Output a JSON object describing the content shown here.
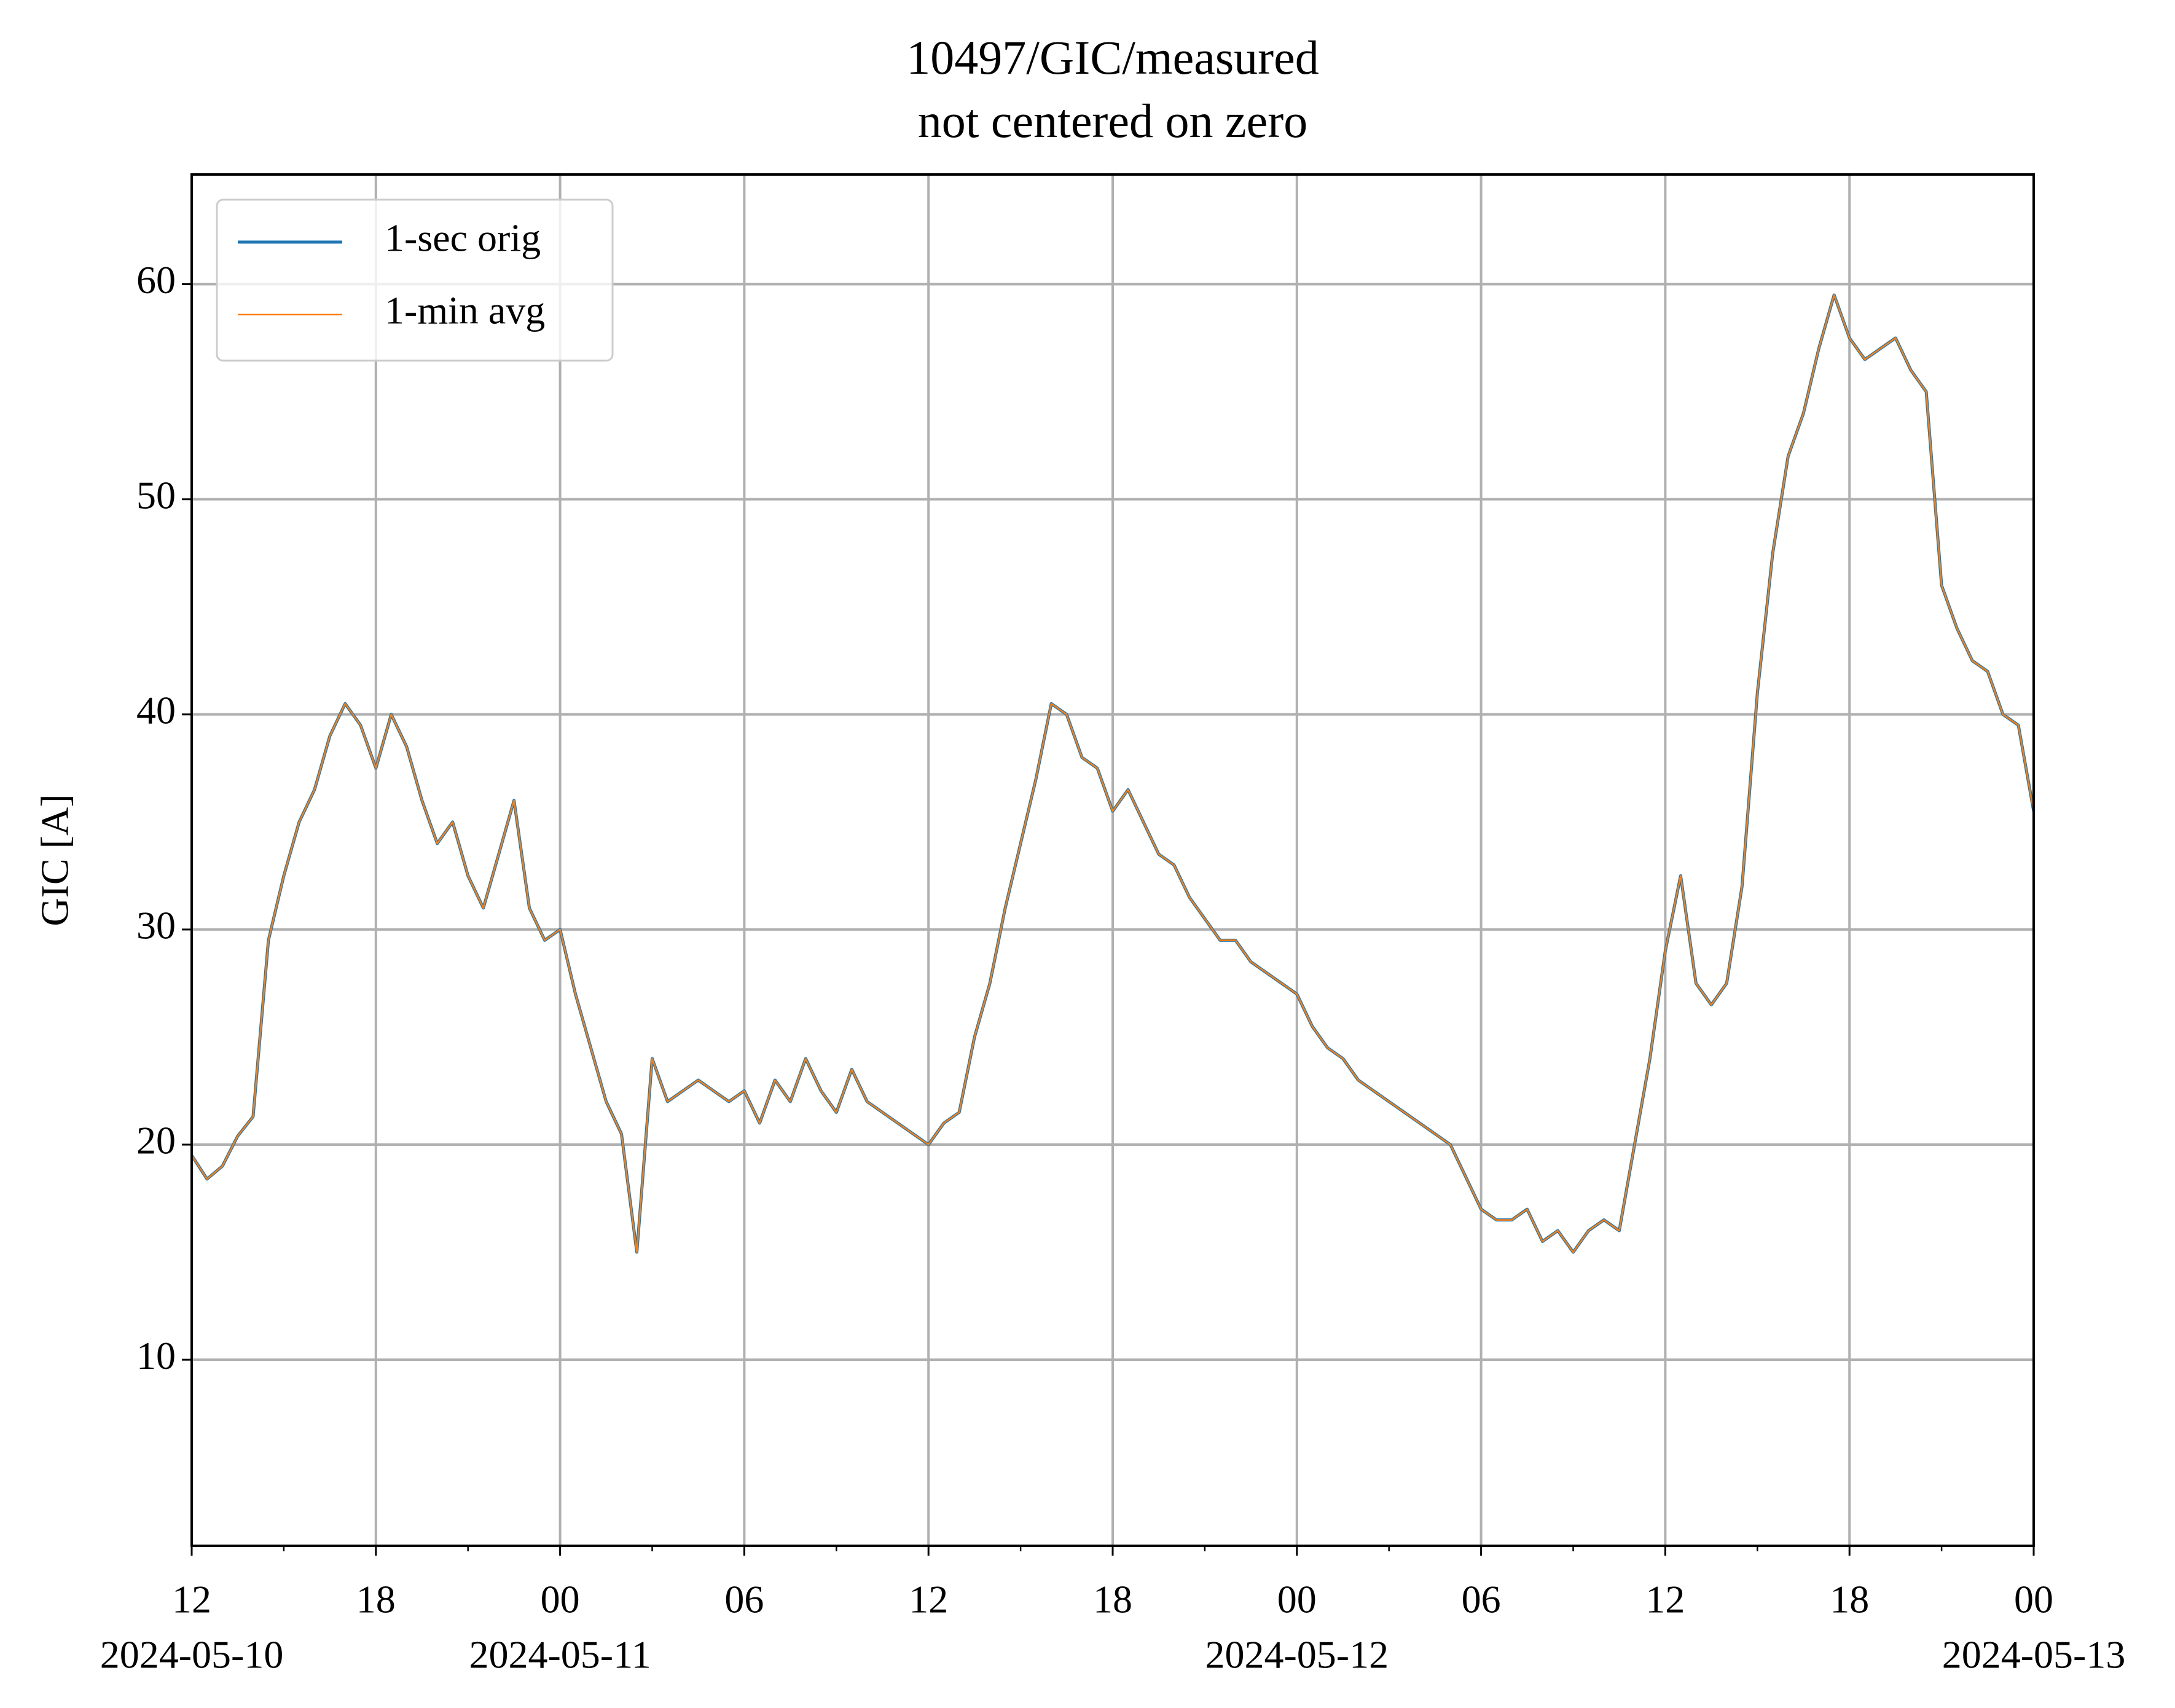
{
  "chart_data": {
    "type": "line",
    "title": "10497/GIC/measured",
    "subtitle": "not centered on zero",
    "ylabel": "GIC [A]",
    "legend": "upper left",
    "grid": true,
    "ylim": [
      1.35,
      65.1
    ],
    "yticks": [
      10,
      20,
      30,
      40,
      50,
      60
    ],
    "xlim": [
      "2024-05-10 12:00",
      "2024-05-13 00:00"
    ],
    "xticks": [
      {
        "value": "2024-05-10 12:00",
        "label": "12",
        "sublabel": "2024-05-10"
      },
      {
        "value": "2024-05-10 18:00",
        "label": "18"
      },
      {
        "value": "2024-05-11 00:00",
        "label": "00",
        "sublabel": "2024-05-11"
      },
      {
        "value": "2024-05-11 06:00",
        "label": "06"
      },
      {
        "value": "2024-05-11 12:00",
        "label": "12"
      },
      {
        "value": "2024-05-11 18:00",
        "label": "18"
      },
      {
        "value": "2024-05-12 00:00",
        "label": "00",
        "sublabel": "2024-05-12"
      },
      {
        "value": "2024-05-12 06:00",
        "label": "06"
      },
      {
        "value": "2024-05-12 12:00",
        "label": "12"
      },
      {
        "value": "2024-05-12 18:00",
        "label": "18"
      },
      {
        "value": "2024-05-13 00:00",
        "label": "00",
        "sublabel": "2024-05-13"
      }
    ],
    "xminorticks": [
      "2024-05-10 15:00",
      "2024-05-10 21:00",
      "2024-05-11 03:00",
      "2024-05-11 09:00",
      "2024-05-11 15:00",
      "2024-05-11 21:00",
      "2024-05-12 03:00",
      "2024-05-12 09:00",
      "2024-05-12 15:00",
      "2024-05-12 21:00"
    ],
    "x": [
      "2024-05-10 12:00",
      "2024-05-10 12:30",
      "2024-05-10 13:00",
      "2024-05-10 13:30",
      "2024-05-10 14:00",
      "2024-05-10 14:30",
      "2024-05-10 15:00",
      "2024-05-10 15:30",
      "2024-05-10 16:00",
      "2024-05-10 16:30",
      "2024-05-10 17:00",
      "2024-05-10 17:30",
      "2024-05-10 18:00",
      "2024-05-10 18:30",
      "2024-05-10 19:00",
      "2024-05-10 19:30",
      "2024-05-10 20:00",
      "2024-05-10 20:30",
      "2024-05-10 21:00",
      "2024-05-10 21:30",
      "2024-05-10 22:00",
      "2024-05-10 22:30",
      "2024-05-10 23:00",
      "2024-05-10 23:30",
      "2024-05-11 00:00",
      "2024-05-11 00:30",
      "2024-05-11 01:00",
      "2024-05-11 01:30",
      "2024-05-11 02:00",
      "2024-05-11 02:30",
      "2024-05-11 03:00",
      "2024-05-11 03:30",
      "2024-05-11 04:00",
      "2024-05-11 04:30",
      "2024-05-11 05:00",
      "2024-05-11 05:30",
      "2024-05-11 06:00",
      "2024-05-11 06:30",
      "2024-05-11 07:00",
      "2024-05-11 07:30",
      "2024-05-11 08:00",
      "2024-05-11 08:30",
      "2024-05-11 09:00",
      "2024-05-11 09:30",
      "2024-05-11 10:00",
      "2024-05-11 10:30",
      "2024-05-11 11:00",
      "2024-05-11 11:30",
      "2024-05-11 12:00",
      "2024-05-11 12:30",
      "2024-05-11 13:00",
      "2024-05-11 13:30",
      "2024-05-11 14:00",
      "2024-05-11 14:30",
      "2024-05-11 15:00",
      "2024-05-11 15:30",
      "2024-05-11 16:00",
      "2024-05-11 16:30",
      "2024-05-11 17:00",
      "2024-05-11 17:30",
      "2024-05-11 18:00",
      "2024-05-11 18:30",
      "2024-05-11 19:00",
      "2024-05-11 19:30",
      "2024-05-11 20:00",
      "2024-05-11 20:30",
      "2024-05-11 21:00",
      "2024-05-11 21:30",
      "2024-05-11 22:00",
      "2024-05-11 22:30",
      "2024-05-11 23:00",
      "2024-05-11 23:30",
      "2024-05-12 00:00",
      "2024-05-12 00:30",
      "2024-05-12 01:00",
      "2024-05-12 01:30",
      "2024-05-12 02:00",
      "2024-05-12 02:30",
      "2024-05-12 03:00",
      "2024-05-12 03:30",
      "2024-05-12 04:00",
      "2024-05-12 04:30",
      "2024-05-12 05:00",
      "2024-05-12 05:30",
      "2024-05-12 06:00",
      "2024-05-12 06:30",
      "2024-05-12 07:00",
      "2024-05-12 07:30",
      "2024-05-12 08:00",
      "2024-05-12 08:30",
      "2024-05-12 09:00",
      "2024-05-12 09:30",
      "2024-05-12 10:00",
      "2024-05-12 10:30",
      "2024-05-12 11:00",
      "2024-05-12 11:30",
      "2024-05-12 12:00",
      "2024-05-12 12:30",
      "2024-05-12 13:00",
      "2024-05-12 13:30",
      "2024-05-12 14:00",
      "2024-05-12 14:30",
      "2024-05-12 15:00",
      "2024-05-12 15:30",
      "2024-05-12 16:00",
      "2024-05-12 16:30",
      "2024-05-12 17:00",
      "2024-05-12 17:30",
      "2024-05-12 18:00",
      "2024-05-12 18:30",
      "2024-05-12 19:00",
      "2024-05-12 19:30",
      "2024-05-12 20:00",
      "2024-05-12 20:30",
      "2024-05-12 21:00",
      "2024-05-12 21:30",
      "2024-05-12 22:00",
      "2024-05-12 22:30",
      "2024-05-12 23:00",
      "2024-05-12 23:30",
      "2024-05-13 00:00"
    ],
    "series": [
      {
        "name": "1-sec orig",
        "color": "#1f77b4",
        "width": 5,
        "values": [
          19.5,
          18.4,
          19.0,
          20.4,
          21.3,
          29.5,
          32.5,
          35.0,
          36.5,
          39.0,
          40.5,
          39.5,
          37.5,
          40.0,
          38.5,
          36.0,
          34.0,
          35.0,
          32.5,
          31.0,
          33.5,
          36.0,
          31.0,
          29.5,
          30.0,
          27.0,
          24.5,
          22.0,
          20.5,
          15.0,
          24.0,
          22.0,
          22.5,
          23.0,
          22.5,
          22.0,
          22.5,
          21.0,
          23.0,
          22.0,
          24.0,
          22.5,
          21.5,
          23.5,
          22.0,
          21.5,
          21.0,
          20.5,
          20.0,
          21.0,
          21.5,
          25.0,
          27.5,
          31.0,
          34.0,
          37.0,
          40.5,
          40.0,
          38.0,
          37.5,
          35.5,
          36.5,
          35.0,
          33.5,
          33.0,
          31.5,
          30.5,
          29.5,
          29.5,
          28.5,
          28.0,
          27.5,
          27.0,
          25.5,
          24.5,
          24.0,
          23.0,
          22.5,
          22.0,
          21.5,
          21.0,
          20.5,
          20.0,
          18.5,
          17.0,
          16.5,
          16.5,
          17.0,
          15.5,
          16.0,
          15.0,
          16.0,
          16.5,
          16.0,
          20.0,
          24.0,
          29.0,
          32.5,
          27.5,
          26.5,
          27.5,
          32.0,
          41.0,
          47.5,
          52.0,
          54.0,
          57.0,
          59.5,
          57.5,
          56.5,
          57.0,
          57.5,
          56.0,
          55.0,
          46.0,
          44.0,
          42.5,
          42.0,
          40.0,
          39.5,
          35.5
        ]
      },
      {
        "name": "1-min avg",
        "color": "#ff7f0e",
        "width": 2.5,
        "values": [
          19.5,
          18.4,
          19.0,
          20.4,
          21.3,
          29.5,
          32.5,
          35.0,
          36.5,
          39.0,
          40.5,
          39.5,
          37.5,
          40.0,
          38.5,
          36.0,
          34.0,
          35.0,
          32.5,
          31.0,
          33.5,
          36.0,
          31.0,
          29.5,
          30.0,
          27.0,
          24.5,
          22.0,
          20.5,
          15.0,
          24.0,
          22.0,
          22.5,
          23.0,
          22.5,
          22.0,
          22.5,
          21.0,
          23.0,
          22.0,
          24.0,
          22.5,
          21.5,
          23.5,
          22.0,
          21.5,
          21.0,
          20.5,
          20.0,
          21.0,
          21.5,
          25.0,
          27.5,
          31.0,
          34.0,
          37.0,
          40.5,
          40.0,
          38.0,
          37.5,
          35.5,
          36.5,
          35.0,
          33.5,
          33.0,
          31.5,
          30.5,
          29.5,
          29.5,
          28.5,
          28.0,
          27.5,
          27.0,
          25.5,
          24.5,
          24.0,
          23.0,
          22.5,
          22.0,
          21.5,
          21.0,
          20.5,
          20.0,
          18.5,
          17.0,
          16.5,
          16.5,
          17.0,
          15.5,
          16.0,
          15.0,
          16.0,
          16.5,
          16.0,
          20.0,
          24.0,
          29.0,
          32.5,
          27.5,
          26.5,
          27.5,
          32.0,
          41.0,
          47.5,
          52.0,
          54.0,
          57.0,
          59.5,
          57.5,
          56.5,
          57.0,
          57.5,
          56.0,
          55.0,
          46.0,
          44.0,
          42.5,
          42.0,
          40.0,
          39.5,
          35.5
        ]
      }
    ]
  }
}
